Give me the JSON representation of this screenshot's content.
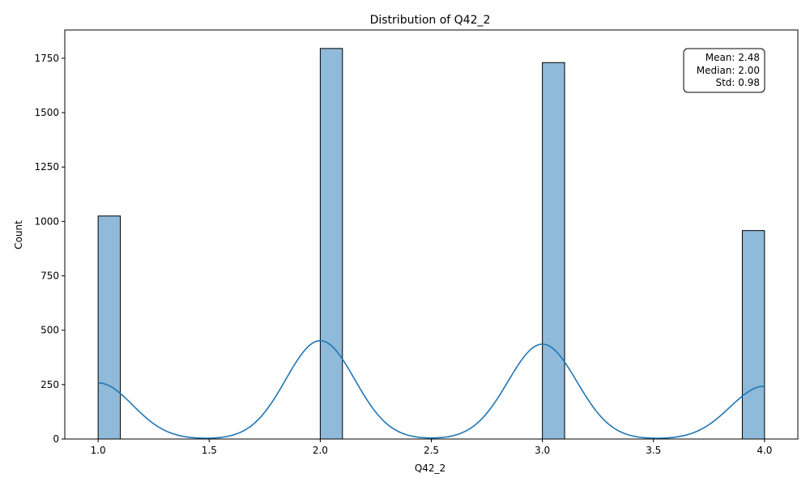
{
  "chart_data": {
    "type": "bar",
    "title": "Distribution of Q42_2",
    "xlabel": "Q42_2",
    "ylabel": "Count",
    "xlim": [
      0.85,
      4.15
    ],
    "ylim": [
      0,
      1880
    ],
    "xticks": [
      1.0,
      1.5,
      2.0,
      2.5,
      3.0,
      3.5,
      4.0
    ],
    "xtick_labels": [
      "1.0",
      "1.5",
      "2.0",
      "2.5",
      "3.0",
      "3.5",
      "4.0"
    ],
    "yticks": [
      0,
      250,
      500,
      750,
      1000,
      1250,
      1500,
      1750
    ],
    "ytick_labels": [
      "0",
      "250",
      "500",
      "750",
      "1000",
      "1250",
      "1500",
      "1750"
    ],
    "grid": false,
    "bars": [
      {
        "x0": 1.0,
        "x1": 1.1,
        "value": 1025
      },
      {
        "x0": 2.0,
        "x1": 2.1,
        "value": 1795
      },
      {
        "x0": 3.0,
        "x1": 3.1,
        "value": 1730
      },
      {
        "x0": 3.9,
        "x1": 4.0,
        "value": 958
      }
    ],
    "kde_peaks": [
      {
        "mu": 1.0,
        "h": 258
      },
      {
        "mu": 2.0,
        "h": 452
      },
      {
        "mu": 3.0,
        "h": 436
      },
      {
        "mu": 4.0,
        "h": 243
      }
    ],
    "kde_sigma": 0.155,
    "stats_box": {
      "placement": "top-right",
      "lines": [
        "Mean: 2.48",
        "Median: 2.00",
        "Std: 0.98"
      ]
    },
    "colors": {
      "bar_fill": "#8fbada",
      "bar_edge": "#000000",
      "kde_line": "#1f77b4"
    }
  }
}
